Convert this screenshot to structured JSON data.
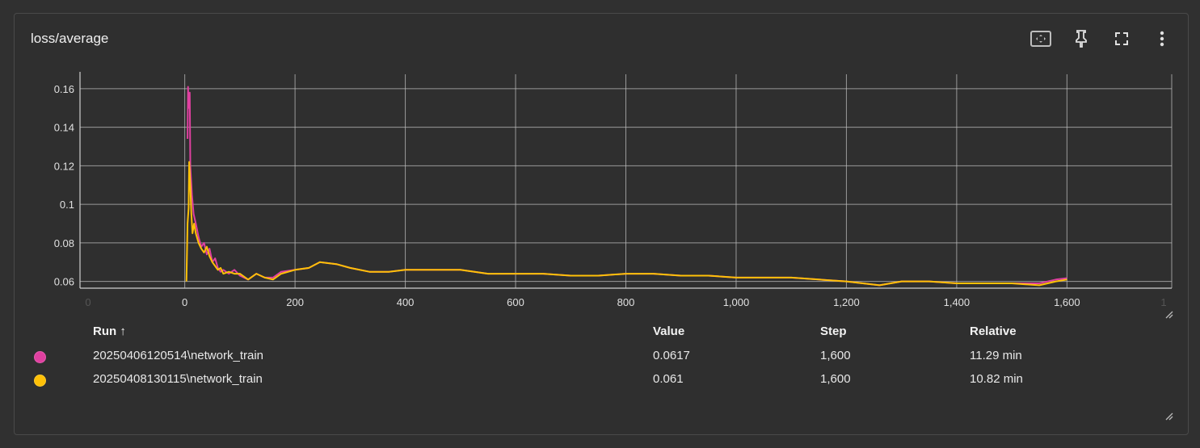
{
  "card": {
    "title": "loss/average",
    "toolbar": {
      "fit_icon": "fit-domain-icon",
      "pin_icon": "pin-icon",
      "fullscreen_icon": "fullscreen-icon",
      "more_icon": "more-vert-icon"
    }
  },
  "table": {
    "headers": {
      "run": "Run ↑",
      "value": "Value",
      "step": "Step",
      "relative": "Relative"
    },
    "rows": [
      {
        "color": "#e040a0",
        "run": "20250406120514\\network_train",
        "value": "0.0617",
        "step": "1,600",
        "relative": "11.29 min"
      },
      {
        "color": "#ffc107",
        "run": "20250408130115\\network_train",
        "value": "0.061",
        "step": "1,600",
        "relative": "10.82 min"
      }
    ]
  },
  "chart_data": {
    "type": "line",
    "xlim": [
      -190,
      1790
    ],
    "ylim": [
      0.0565,
      0.1675
    ],
    "x_ticks": [
      0,
      200,
      400,
      600,
      800,
      1000,
      1200,
      1400,
      1600
    ],
    "x_tick_labels": [
      "0",
      "200",
      "400",
      "600",
      "800",
      "1,000",
      "1,200",
      "1,400",
      "1,600"
    ],
    "x_edge_labels": [
      "0",
      "1"
    ],
    "y_ticks": [
      0.06,
      0.08,
      0.1,
      0.12,
      0.14,
      0.16
    ],
    "y_tick_labels": [
      "0.06",
      "0.08",
      "0.1",
      "0.12",
      "0.14",
      "0.16"
    ],
    "grid": true,
    "series": [
      {
        "color": "#e040a0",
        "points": [
          [
            5,
            0.134
          ],
          [
            6,
            0.161
          ],
          [
            7,
            0.15
          ],
          [
            9,
            0.158
          ],
          [
            10,
            0.12
          ],
          [
            13,
            0.105
          ],
          [
            16,
            0.095
          ],
          [
            20,
            0.09
          ],
          [
            25,
            0.083
          ],
          [
            30,
            0.078
          ],
          [
            35,
            0.08
          ],
          [
            40,
            0.074
          ],
          [
            45,
            0.077
          ],
          [
            50,
            0.07
          ],
          [
            55,
            0.072
          ],
          [
            60,
            0.067
          ],
          [
            65,
            0.065
          ],
          [
            70,
            0.066
          ],
          [
            80,
            0.064
          ],
          [
            90,
            0.066
          ],
          [
            100,
            0.063
          ],
          [
            115,
            0.061
          ],
          [
            130,
            0.064
          ],
          [
            145,
            0.062
          ],
          [
            160,
            0.062
          ],
          [
            175,
            0.065
          ],
          [
            200,
            0.066
          ],
          [
            225,
            0.067
          ],
          [
            245,
            0.07
          ],
          [
            275,
            0.069
          ],
          [
            300,
            0.067
          ],
          [
            335,
            0.065
          ],
          [
            370,
            0.065
          ],
          [
            400,
            0.066
          ],
          [
            450,
            0.066
          ],
          [
            500,
            0.066
          ],
          [
            550,
            0.064
          ],
          [
            600,
            0.064
          ],
          [
            650,
            0.064
          ],
          [
            700,
            0.063
          ],
          [
            750,
            0.063
          ],
          [
            800,
            0.064
          ],
          [
            850,
            0.064
          ],
          [
            900,
            0.063
          ],
          [
            950,
            0.063
          ],
          [
            1000,
            0.062
          ],
          [
            1050,
            0.062
          ],
          [
            1100,
            0.062
          ],
          [
            1150,
            0.061
          ],
          [
            1200,
            0.06
          ],
          [
            1230,
            0.059
          ],
          [
            1260,
            0.058
          ],
          [
            1300,
            0.06
          ],
          [
            1350,
            0.06
          ],
          [
            1400,
            0.059
          ],
          [
            1450,
            0.059
          ],
          [
            1500,
            0.059
          ],
          [
            1550,
            0.059
          ],
          [
            1580,
            0.061
          ],
          [
            1600,
            0.0617
          ]
        ]
      },
      {
        "color": "#ffc107",
        "points": [
          [
            3,
            0.06
          ],
          [
            5,
            0.09
          ],
          [
            7,
            0.098
          ],
          [
            8,
            0.122
          ],
          [
            10,
            0.11
          ],
          [
            12,
            0.095
          ],
          [
            14,
            0.085
          ],
          [
            17,
            0.09
          ],
          [
            20,
            0.085
          ],
          [
            25,
            0.08
          ],
          [
            30,
            0.077
          ],
          [
            35,
            0.075
          ],
          [
            40,
            0.078
          ],
          [
            45,
            0.073
          ],
          [
            50,
            0.07
          ],
          [
            55,
            0.068
          ],
          [
            60,
            0.066
          ],
          [
            65,
            0.067
          ],
          [
            70,
            0.064
          ],
          [
            80,
            0.065
          ],
          [
            90,
            0.064
          ],
          [
            100,
            0.064
          ],
          [
            115,
            0.061
          ],
          [
            130,
            0.064
          ],
          [
            145,
            0.062
          ],
          [
            160,
            0.061
          ],
          [
            175,
            0.064
          ],
          [
            200,
            0.066
          ],
          [
            225,
            0.067
          ],
          [
            245,
            0.07
          ],
          [
            275,
            0.069
          ],
          [
            300,
            0.067
          ],
          [
            335,
            0.065
          ],
          [
            370,
            0.065
          ],
          [
            400,
            0.066
          ],
          [
            450,
            0.066
          ],
          [
            500,
            0.066
          ],
          [
            550,
            0.064
          ],
          [
            600,
            0.064
          ],
          [
            650,
            0.064
          ],
          [
            700,
            0.063
          ],
          [
            750,
            0.063
          ],
          [
            800,
            0.064
          ],
          [
            850,
            0.064
          ],
          [
            900,
            0.063
          ],
          [
            950,
            0.063
          ],
          [
            1000,
            0.062
          ],
          [
            1050,
            0.062
          ],
          [
            1100,
            0.062
          ],
          [
            1150,
            0.061
          ],
          [
            1200,
            0.06
          ],
          [
            1230,
            0.059
          ],
          [
            1260,
            0.058
          ],
          [
            1300,
            0.06
          ],
          [
            1350,
            0.06
          ],
          [
            1400,
            0.059
          ],
          [
            1450,
            0.059
          ],
          [
            1500,
            0.059
          ],
          [
            1550,
            0.058
          ],
          [
            1580,
            0.06
          ],
          [
            1600,
            0.061
          ]
        ]
      }
    ]
  }
}
